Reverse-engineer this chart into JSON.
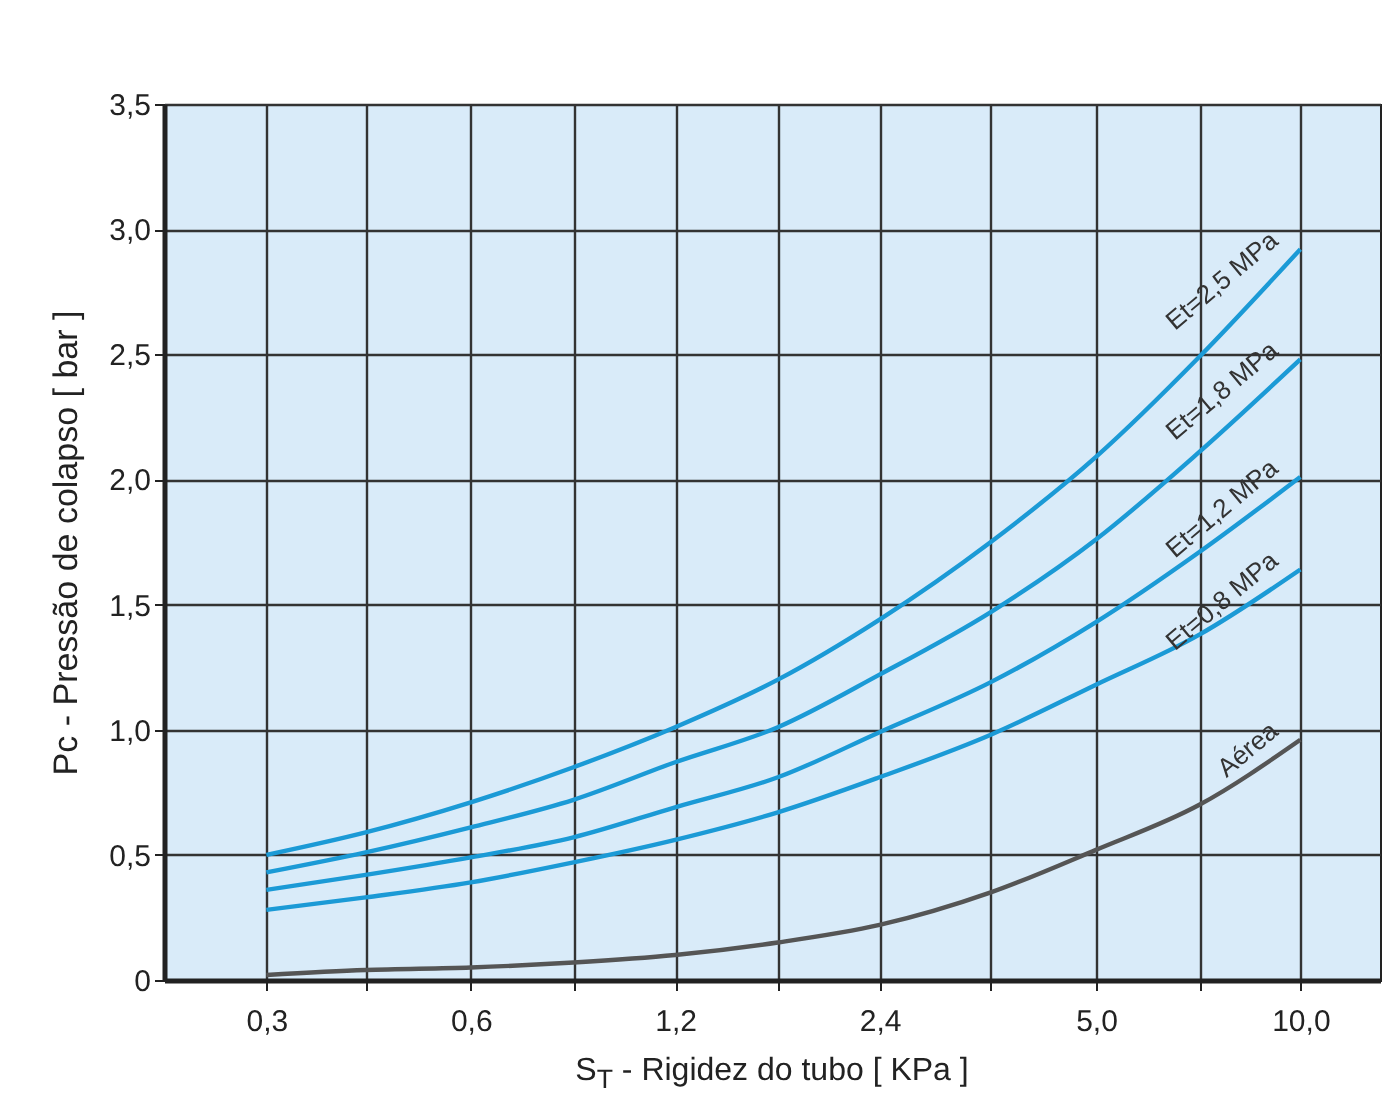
{
  "chart_data": {
    "type": "line",
    "xlabel": "S$_{T}$ - Rigidez do tubo [ KPa ]",
    "ylabel": "Pc - Pressão de colapso  [ bar ]",
    "x": [
      0.3,
      0.42,
      0.6,
      0.85,
      1.2,
      1.7,
      2.4,
      3.5,
      5.0,
      7.1,
      10.0
    ],
    "series": [
      {
        "name": "Et=2,5 MPa",
        "color": "#1b9ad6",
        "values": [
          0.5,
          0.59,
          0.71,
          0.85,
          1.01,
          1.2,
          1.44,
          1.75,
          2.09,
          2.49,
          2.92
        ]
      },
      {
        "name": "Et=1,8 MPa",
        "color": "#1b9ad6",
        "values": [
          0.43,
          0.51,
          0.61,
          0.72,
          0.87,
          1.01,
          1.22,
          1.47,
          1.76,
          2.11,
          2.48
        ]
      },
      {
        "name": "Et=1,2 MPa",
        "color": "#1b9ad6",
        "values": [
          0.36,
          0.42,
          0.49,
          0.57,
          0.69,
          0.81,
          0.99,
          1.19,
          1.43,
          1.71,
          2.01
        ]
      },
      {
        "name": "Et=0,8 MPa",
        "color": "#1b9ad6",
        "values": [
          0.28,
          0.33,
          0.39,
          0.47,
          0.56,
          0.67,
          0.81,
          0.98,
          1.18,
          1.38,
          1.64
        ]
      },
      {
        "name": "Aérea",
        "color": "#555555",
        "values": [
          0.02,
          0.04,
          0.05,
          0.07,
          0.1,
          0.15,
          0.22,
          0.35,
          0.52,
          0.7,
          0.96
        ]
      }
    ],
    "log": "x",
    "xlim": [
      0.212,
      13.1
    ],
    "ylim": [
      0,
      3.5
    ],
    "xticks": [
      {
        "value": 0.3,
        "label": "0,3"
      },
      {
        "value": 0.42,
        "label": null
      },
      {
        "value": 0.6,
        "label": "0,6"
      },
      {
        "value": 0.85,
        "label": null
      },
      {
        "value": 1.2,
        "label": "1,2"
      },
      {
        "value": 1.7,
        "label": null
      },
      {
        "value": 2.4,
        "label": "2,4"
      },
      {
        "value": 3.5,
        "label": null
      },
      {
        "value": 5.0,
        "label": "5,0"
      },
      {
        "value": 7.1,
        "label": null
      },
      {
        "value": 10.0,
        "label": "10,0"
      }
    ],
    "yticks": [
      0,
      {
        "value": 0.5,
        "label": "0,5"
      },
      {
        "value": 1.0,
        "label": "1,0"
      },
      {
        "value": 1.5,
        "label": "1,5"
      },
      {
        "value": 2.0,
        "label": "2,0"
      },
      {
        "value": 2.5,
        "label": "2,5"
      },
      {
        "value": 3.0,
        "label": "3,0"
      },
      {
        "value": 3.5,
        "label": "3,5"
      }
    ],
    "grid": true,
    "line_style": "solid",
    "marker": "none"
  }
}
